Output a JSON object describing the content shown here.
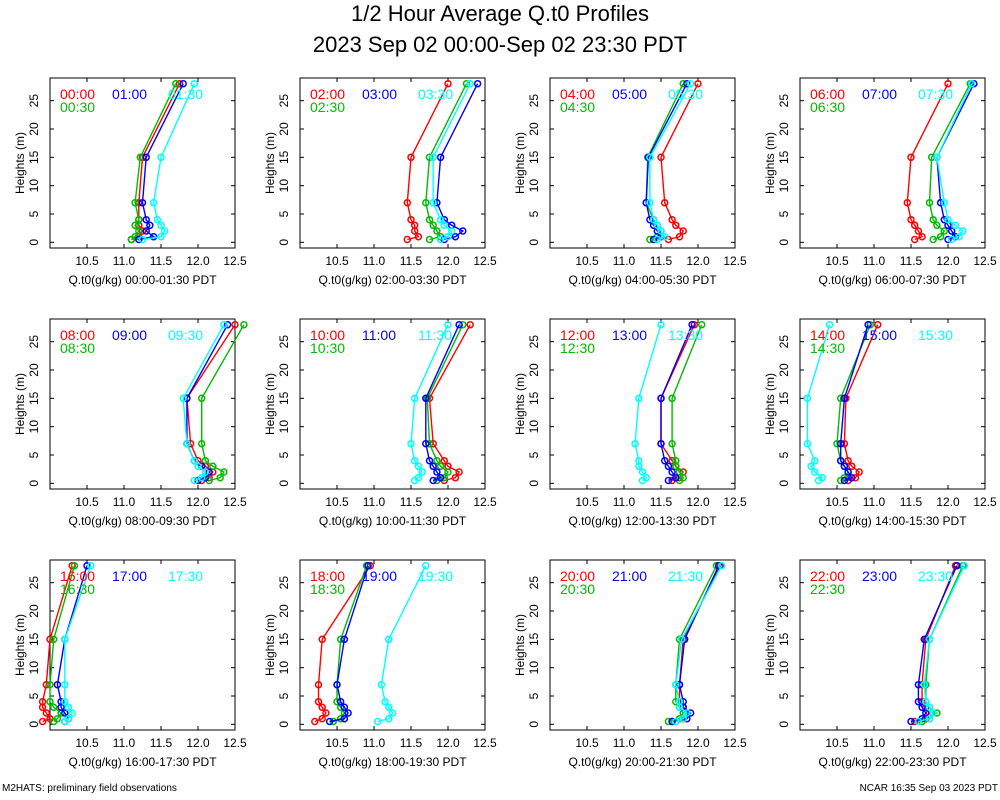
{
  "title": "1/2 Hour Average Q.t0 Profiles",
  "subtitle": "2023 Sep 02 00:00-Sep 02 23:30 PDT",
  "footer_left": "M2HATS: preliminary field observations",
  "footer_right": "NCAR 16:35 Sep 03 2023 PDT",
  "colors": {
    "first": "#ff0000",
    "second": "#00bb00",
    "third": "#0000ff",
    "fourth": "#00ffff"
  },
  "chart_data": [
    {
      "type": "line",
      "xlabel": "Q.t0(g/kg) 00:00-01:30 PDT",
      "ylabel": "Heights (m)",
      "xlim": [
        10,
        12.5
      ],
      "ylim": [
        -1,
        29
      ],
      "xticks": [
        "10.5",
        "11.0",
        "11.5",
        "12.0",
        "12.5"
      ],
      "yticks": [
        "0",
        "5",
        "10",
        "15",
        "20",
        "25"
      ],
      "heights": [
        0.5,
        1,
        2,
        3,
        4,
        7,
        15,
        28
      ],
      "series": [
        {
          "name": "00:00",
          "color": "#ff0000",
          "values": [
            11.1,
            11.2,
            11.25,
            11.2,
            11.2,
            11.2,
            11.25,
            11.75
          ]
        },
        {
          "name": "00:30",
          "color": "#00bb00",
          "values": [
            11.1,
            11.15,
            11.2,
            11.15,
            11.2,
            11.15,
            11.22,
            11.7
          ]
        },
        {
          "name": "01:00",
          "color": "#0000ff",
          "values": [
            11.2,
            11.4,
            11.3,
            11.35,
            11.3,
            11.25,
            11.3,
            11.8
          ]
        },
        {
          "name": "01:30",
          "color": "#00ffff",
          "values": [
            11.25,
            11.5,
            11.55,
            11.5,
            11.45,
            11.4,
            11.5,
            11.95
          ]
        }
      ]
    },
    {
      "type": "line",
      "xlabel": "Q.t0(g/kg) 02:00-03:30 PDT",
      "ylabel": "Heights (m)",
      "xlim": [
        10,
        12.5
      ],
      "ylim": [
        -1,
        29
      ],
      "xticks": [
        "10.5",
        "11.0",
        "11.5",
        "12.0",
        "12.5"
      ],
      "yticks": [
        "0",
        "5",
        "10",
        "15",
        "20",
        "25"
      ],
      "heights": [
        0.5,
        1,
        2,
        3,
        4,
        7,
        15,
        28
      ],
      "series": [
        {
          "name": "02:00",
          "color": "#ff0000",
          "values": [
            11.45,
            11.6,
            11.55,
            11.55,
            11.5,
            11.45,
            11.5,
            12.0
          ]
        },
        {
          "name": "02:30",
          "color": "#00bb00",
          "values": [
            11.75,
            11.9,
            11.85,
            11.8,
            11.75,
            11.7,
            11.75,
            12.25
          ]
        },
        {
          "name": "03:00",
          "color": "#0000ff",
          "values": [
            11.95,
            12.1,
            12.2,
            12.05,
            11.95,
            11.85,
            11.9,
            12.4
          ]
        },
        {
          "name": "03:30",
          "color": "#00ffff",
          "values": [
            11.9,
            12.0,
            12.05,
            11.95,
            11.9,
            11.8,
            11.8,
            12.3
          ]
        }
      ]
    },
    {
      "type": "line",
      "xlabel": "Q.t0(g/kg) 04:00-05:30 PDT",
      "ylabel": "Heights (m)",
      "xlim": [
        10,
        12.5
      ],
      "ylim": [
        -1,
        29
      ],
      "xticks": [
        "10.5",
        "11.0",
        "11.5",
        "12.0",
        "12.5"
      ],
      "yticks": [
        "0",
        "5",
        "10",
        "15",
        "20",
        "25"
      ],
      "heights": [
        0.5,
        1,
        2,
        3,
        4,
        7,
        15,
        28
      ],
      "series": [
        {
          "name": "04:00",
          "color": "#ff0000",
          "values": [
            11.6,
            11.75,
            11.8,
            11.7,
            11.65,
            11.55,
            11.5,
            12.0
          ]
        },
        {
          "name": "04:30",
          "color": "#00bb00",
          "values": [
            11.35,
            11.45,
            11.5,
            11.45,
            11.4,
            11.3,
            11.32,
            11.8
          ]
        },
        {
          "name": "05:00",
          "color": "#0000ff",
          "values": [
            11.4,
            11.5,
            11.45,
            11.4,
            11.35,
            11.3,
            11.33,
            11.85
          ]
        },
        {
          "name": "05:30",
          "color": "#00ffff",
          "values": [
            11.45,
            11.55,
            11.5,
            11.45,
            11.4,
            11.35,
            11.35,
            11.9
          ]
        }
      ]
    },
    {
      "type": "line",
      "xlabel": "Q.t0(g/kg) 06:00-07:30 PDT",
      "ylabel": "Heights (m)",
      "xlim": [
        10,
        12.5
      ],
      "ylim": [
        -1,
        29
      ],
      "xticks": [
        "10.5",
        "11.0",
        "11.5",
        "12.0",
        "12.5"
      ],
      "yticks": [
        "0",
        "5",
        "10",
        "15",
        "20",
        "25"
      ],
      "heights": [
        0.5,
        1,
        2,
        3,
        4,
        7,
        15,
        28
      ],
      "series": [
        {
          "name": "06:00",
          "color": "#ff0000",
          "values": [
            11.55,
            11.65,
            11.6,
            11.55,
            11.5,
            11.45,
            11.5,
            12.0
          ]
        },
        {
          "name": "06:30",
          "color": "#00bb00",
          "values": [
            11.8,
            11.9,
            11.95,
            11.85,
            11.8,
            11.75,
            11.78,
            12.3
          ]
        },
        {
          "name": "07:00",
          "color": "#0000ff",
          "values": [
            12.0,
            12.1,
            12.05,
            12.0,
            11.95,
            11.9,
            11.85,
            12.35
          ]
        },
        {
          "name": "07:30",
          "color": "#00ffff",
          "values": [
            12.05,
            12.15,
            12.2,
            12.1,
            12.0,
            11.95,
            11.85,
            12.32
          ]
        }
      ]
    },
    {
      "type": "line",
      "xlabel": "Q.t0(g/kg) 08:00-09:30 PDT",
      "ylabel": "Heights (m)",
      "xlim": [
        10,
        12.5
      ],
      "ylim": [
        -1,
        29
      ],
      "xticks": [
        "10.5",
        "11.0",
        "11.5",
        "12.0",
        "12.5"
      ],
      "yticks": [
        "0",
        "5",
        "10",
        "15",
        "20",
        "25"
      ],
      "heights": [
        0.5,
        1,
        2,
        3,
        4,
        7,
        15,
        28
      ],
      "series": [
        {
          "name": "08:00",
          "color": "#ff0000",
          "values": [
            12.05,
            12.15,
            12.2,
            12.1,
            12.0,
            11.9,
            11.85,
            12.5
          ]
        },
        {
          "name": "08:30",
          "color": "#00bb00",
          "values": [
            12.15,
            12.3,
            12.35,
            12.2,
            12.1,
            12.05,
            12.05,
            12.62
          ]
        },
        {
          "name": "09:00",
          "color": "#0000ff",
          "values": [
            12.0,
            12.1,
            12.15,
            12.05,
            11.95,
            11.85,
            11.85,
            12.4
          ]
        },
        {
          "name": "09:30",
          "color": "#00ffff",
          "values": [
            11.95,
            12.05,
            12.1,
            12.0,
            11.95,
            11.85,
            11.8,
            12.35
          ]
        }
      ]
    },
    {
      "type": "line",
      "xlabel": "Q.t0(g/kg) 10:00-11:30 PDT",
      "ylabel": "Heights (m)",
      "xlim": [
        10,
        12.5
      ],
      "ylim": [
        -1,
        29
      ],
      "xticks": [
        "10.5",
        "11.0",
        "11.5",
        "12.0",
        "12.5"
      ],
      "yticks": [
        "0",
        "5",
        "10",
        "15",
        "20",
        "25"
      ],
      "heights": [
        0.5,
        1,
        2,
        3,
        4,
        7,
        15,
        28
      ],
      "series": [
        {
          "name": "10:00",
          "color": "#ff0000",
          "values": [
            11.95,
            12.1,
            12.15,
            12.0,
            11.95,
            11.8,
            11.75,
            12.3
          ]
        },
        {
          "name": "10:30",
          "color": "#00bb00",
          "values": [
            11.85,
            11.95,
            12.0,
            11.9,
            11.85,
            11.75,
            11.72,
            12.2
          ]
        },
        {
          "name": "11:00",
          "color": "#0000ff",
          "values": [
            11.8,
            11.9,
            11.85,
            11.8,
            11.75,
            11.7,
            11.7,
            12.15
          ]
        },
        {
          "name": "11:30",
          "color": "#00ffff",
          "values": [
            11.55,
            11.6,
            11.65,
            11.6,
            11.55,
            11.5,
            11.55,
            12.0
          ]
        }
      ]
    },
    {
      "type": "line",
      "xlabel": "Q.t0(g/kg) 12:00-13:30 PDT",
      "ylabel": "Heights (m)",
      "xlim": [
        10,
        12.5
      ],
      "ylim": [
        -1,
        29
      ],
      "xticks": [
        "10.5",
        "11.0",
        "11.5",
        "12.0",
        "12.5"
      ],
      "yticks": [
        "0",
        "5",
        "10",
        "15",
        "20",
        "25"
      ],
      "heights": [
        0.5,
        1,
        2,
        3,
        4,
        7,
        15,
        28
      ],
      "series": [
        {
          "name": "12:00",
          "color": "#ff0000",
          "values": [
            11.65,
            11.75,
            11.8,
            11.7,
            11.65,
            11.5,
            11.5,
            11.95
          ]
        },
        {
          "name": "12:30",
          "color": "#00bb00",
          "values": [
            11.75,
            11.8,
            11.75,
            11.7,
            11.7,
            11.65,
            11.65,
            12.05
          ]
        },
        {
          "name": "13:00",
          "color": "#0000ff",
          "values": [
            11.6,
            11.7,
            11.65,
            11.6,
            11.55,
            11.5,
            11.5,
            11.92
          ]
        },
        {
          "name": "13:30",
          "color": "#00ffff",
          "values": [
            11.25,
            11.3,
            11.25,
            11.2,
            11.2,
            11.15,
            11.2,
            11.5
          ]
        }
      ]
    },
    {
      "type": "line",
      "xlabel": "Q.t0(g/kg) 14:00-15:30 PDT",
      "ylabel": "Heights (m)",
      "xlim": [
        10,
        12.5
      ],
      "ylim": [
        -1,
        29
      ],
      "xticks": [
        "10.5",
        "11.0",
        "11.5",
        "12.0",
        "12.5"
      ],
      "yticks": [
        "0",
        "5",
        "10",
        "15",
        "20",
        "25"
      ],
      "heights": [
        0.5,
        1,
        2,
        3,
        4,
        7,
        15,
        28
      ],
      "series": [
        {
          "name": "14:00",
          "color": "#ff0000",
          "values": [
            10.65,
            10.75,
            10.8,
            10.7,
            10.65,
            10.6,
            10.62,
            11.05
          ]
        },
        {
          "name": "14:30",
          "color": "#00bb00",
          "values": [
            10.55,
            10.6,
            10.65,
            10.6,
            10.55,
            10.5,
            10.55,
            10.95
          ]
        },
        {
          "name": "15:00",
          "color": "#0000ff",
          "values": [
            10.6,
            10.7,
            10.65,
            10.6,
            10.55,
            10.55,
            10.6,
            10.92
          ]
        },
        {
          "name": "15:30",
          "color": "#00ffff",
          "values": [
            10.25,
            10.3,
            10.2,
            10.15,
            10.2,
            10.1,
            10.1,
            10.4
          ]
        }
      ]
    },
    {
      "type": "line",
      "xlabel": "Q.t0(g/kg) 16:00-17:30 PDT",
      "ylabel": "Heights (m)",
      "xlim": [
        10,
        12.5
      ],
      "ylim": [
        -1,
        29
      ],
      "xticks": [
        "10.5",
        "11.0",
        "11.5",
        "12.0",
        "12.5"
      ],
      "yticks": [
        "0",
        "5",
        "10",
        "15",
        "20",
        "25"
      ],
      "heights": [
        0.5,
        1,
        2,
        3,
        4,
        7,
        15,
        28
      ],
      "series": [
        {
          "name": "16:00",
          "color": "#ff0000",
          "values": [
            9.9,
            10.0,
            9.95,
            9.9,
            9.9,
            9.95,
            10.0,
            10.3
          ]
        },
        {
          "name": "16:30",
          "color": "#00bb00",
          "values": [
            10.05,
            10.1,
            10.15,
            10.05,
            10.0,
            10.0,
            10.05,
            10.33
          ]
        },
        {
          "name": "17:00",
          "color": "#0000ff",
          "values": [
            10.2,
            10.25,
            10.2,
            10.15,
            10.15,
            10.1,
            10.2,
            10.5
          ]
        },
        {
          "name": "17:30",
          "color": "#00ffff",
          "values": [
            10.2,
            10.25,
            10.3,
            10.25,
            10.2,
            10.2,
            10.2,
            10.55
          ]
        }
      ]
    },
    {
      "type": "line",
      "xlabel": "Q.t0(g/kg) 18:00-19:30 PDT",
      "ylabel": "Heights (m)",
      "xlim": [
        10,
        12.5
      ],
      "ylim": [
        -1,
        29
      ],
      "xticks": [
        "10.5",
        "11.0",
        "11.5",
        "12.0",
        "12.5"
      ],
      "yticks": [
        "0",
        "5",
        "10",
        "15",
        "20",
        "25"
      ],
      "heights": [
        0.5,
        1,
        2,
        3,
        4,
        7,
        15,
        28
      ],
      "series": [
        {
          "name": "18:00",
          "color": "#ff0000",
          "values": [
            10.2,
            10.3,
            10.35,
            10.3,
            10.25,
            10.25,
            10.3,
            10.95
          ]
        },
        {
          "name": "18:30",
          "color": "#00bb00",
          "values": [
            10.45,
            10.55,
            10.6,
            10.55,
            10.5,
            10.5,
            10.55,
            10.9
          ]
        },
        {
          "name": "19:00",
          "color": "#0000ff",
          "values": [
            10.4,
            10.6,
            10.65,
            10.6,
            10.55,
            10.5,
            10.6,
            10.92
          ]
        },
        {
          "name": "19:30",
          "color": "#00ffff",
          "values": [
            11.05,
            11.2,
            11.25,
            11.2,
            11.15,
            11.1,
            11.2,
            11.7
          ]
        }
      ]
    },
    {
      "type": "line",
      "xlabel": "Q.t0(g/kg) 20:00-21:30 PDT",
      "ylabel": "Heights (m)",
      "xlim": [
        10,
        12.5
      ],
      "ylim": [
        -1,
        29
      ],
      "xticks": [
        "10.5",
        "11.0",
        "11.5",
        "12.0",
        "12.5"
      ],
      "yticks": [
        "0",
        "5",
        "10",
        "15",
        "20",
        "25"
      ],
      "heights": [
        0.5,
        1,
        2,
        3,
        4,
        7,
        15,
        28
      ],
      "series": [
        {
          "name": "20:00",
          "color": "#ff0000",
          "values": [
            11.65,
            11.8,
            11.85,
            11.8,
            11.75,
            11.75,
            11.8,
            12.3
          ]
        },
        {
          "name": "20:30",
          "color": "#00bb00",
          "values": [
            11.6,
            11.75,
            11.8,
            11.75,
            11.7,
            11.7,
            11.75,
            12.25
          ]
        },
        {
          "name": "21:00",
          "color": "#0000ff",
          "values": [
            11.65,
            11.85,
            11.9,
            11.8,
            11.8,
            11.75,
            11.82,
            12.28
          ]
        },
        {
          "name": "21:30",
          "color": "#00ffff",
          "values": [
            11.7,
            11.8,
            11.85,
            11.75,
            11.75,
            11.7,
            11.78,
            12.32
          ]
        }
      ]
    },
    {
      "type": "line",
      "xlabel": "Q.t0(g/kg) 22:00-23:30 PDT",
      "ylabel": "Heights (m)",
      "xlim": [
        10,
        12.5
      ],
      "ylim": [
        -1,
        29
      ],
      "xticks": [
        "10.5",
        "11.0",
        "11.5",
        "12.0",
        "12.5"
      ],
      "yticks": [
        "0",
        "5",
        "10",
        "15",
        "20",
        "25"
      ],
      "heights": [
        0.5,
        1,
        2,
        3,
        4,
        7,
        15,
        28
      ],
      "series": [
        {
          "name": "22:00",
          "color": "#ff0000",
          "values": [
            11.55,
            11.7,
            11.75,
            11.7,
            11.65,
            11.65,
            11.7,
            12.1
          ]
        },
        {
          "name": "22:30",
          "color": "#00bb00",
          "values": [
            11.65,
            11.75,
            11.85,
            11.75,
            11.7,
            11.7,
            11.75,
            12.2
          ]
        },
        {
          "name": "23:00",
          "color": "#0000ff",
          "values": [
            11.5,
            11.65,
            11.7,
            11.65,
            11.6,
            11.6,
            11.68,
            12.12
          ]
        },
        {
          "name": "23:30",
          "color": "#00ffff",
          "values": [
            11.6,
            11.75,
            11.8,
            11.75,
            11.7,
            11.68,
            11.75,
            12.22
          ]
        }
      ]
    }
  ]
}
